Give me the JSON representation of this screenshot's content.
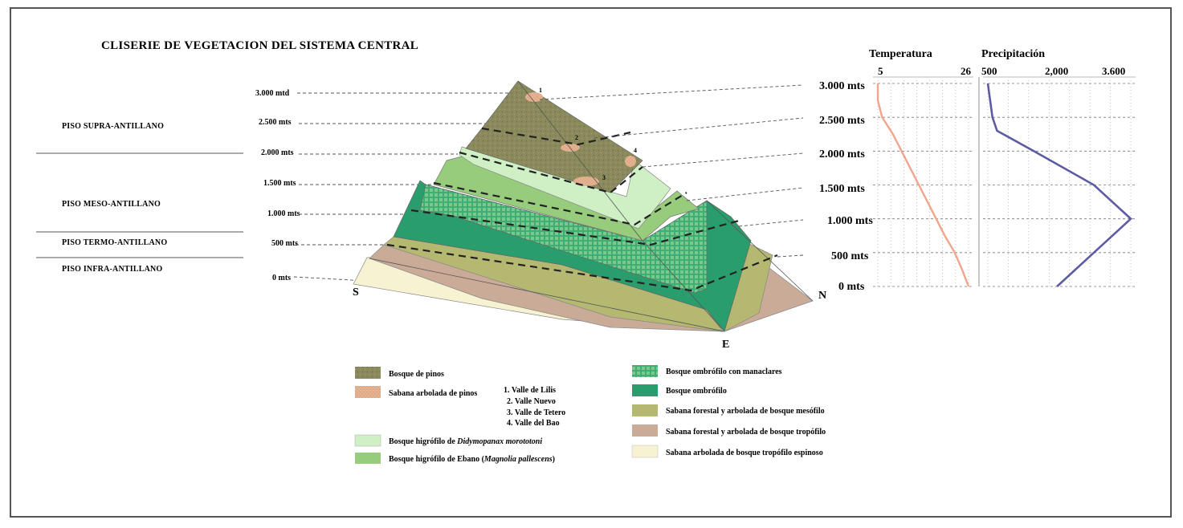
{
  "title": "CLISERIE DE VEGETACION DEL SISTEMA CENTRAL",
  "zones": [
    {
      "label": "PISO SUPRA-ANTILLANO"
    },
    {
      "label": "PISO MESO-ANTILLANO"
    },
    {
      "label": "PISO TERMO-ANTILLANO"
    },
    {
      "label": "PISO INFRA-ANTILLANO"
    }
  ],
  "altitude_labels_left": [
    "3.000 mtd",
    "2.500 mts",
    "2.000 mts",
    "1.500 mts",
    "1.000 mts",
    "500 mts",
    "0 mts"
  ],
  "altitude_labels_right": [
    "3.000 mts",
    "2.500 mts",
    "2.000 mts",
    "1.500 mts",
    "1.000 mts",
    "500 mts",
    "0 mts"
  ],
  "compass": {
    "south": "S",
    "north": "N",
    "east": "E"
  },
  "valley_numbers": [
    "1",
    "2",
    "3",
    "4"
  ],
  "colors": {
    "pine": "#8b8a5d",
    "pine_savanna": "#e6b494",
    "hygro_didymopanax": "#cff0c5",
    "hygro_ebano": "#96cc7c",
    "ombrophile_manaclar": "#3daf74",
    "ombrophile": "#2a9d6c",
    "forest_mesophile": "#b5b870",
    "forest_tropophile": "#c9ab98",
    "spiny_savanna": "#f6f2d2",
    "temperature_line": "#f0a58c",
    "precip_line": "#5c5ba3"
  },
  "legend_left": [
    {
      "text": "Bosque de pinos",
      "icon": "pine-forest-swatch"
    },
    {
      "text": "Sabana arbolada de pinos",
      "icon": "pine-savanna-swatch"
    },
    {
      "text": "Bosque higrófilo de Didymopanax morototoni",
      "icon": "hygro-didymopanax-swatch"
    },
    {
      "text": "Bosque higrófilo de Ebano (Magnolia pallescens)",
      "icon": "hygro-ebano-swatch"
    }
  ],
  "legend_left_rich": {
    "didymo_prefix": "Bosque higrófilo de ",
    "didymo_italic": "Didymopanax morototoni",
    "ebano_prefix": "Bosque higrófilo de Ebano (",
    "ebano_italic": "Magnolia pallescens",
    "ebano_suffix": ")"
  },
  "valleys": [
    "1. Valle de Lilis",
    "2. Valle Nuevo",
    "3. Valle de Tetero",
    "4. Valle del Bao"
  ],
  "legend_right": [
    {
      "text": "Bosque ombrófilo con manaclares",
      "icon": "ombrophile-manaclar-swatch"
    },
    {
      "text": "Bosque ombrófilo",
      "icon": "ombrophile-swatch"
    },
    {
      "text": "Sabana forestal y arbolada de bosque mesófilo",
      "icon": "mesophile-savanna-swatch"
    },
    {
      "text": "Sabana forestal y arbolada de bosque tropófilo",
      "icon": "tropophile-savanna-swatch"
    },
    {
      "text": "Sabana arbolada de bosque tropófilo espinoso",
      "icon": "spiny-savanna-swatch"
    }
  ],
  "chart_data": [
    {
      "type": "line",
      "title": "Temperatura",
      "x_ticks": [
        "5",
        "26"
      ],
      "xlim": [
        5,
        26
      ],
      "y_ticks": [
        0,
        500,
        1000,
        1500,
        2000,
        2500,
        3000
      ],
      "ylim": [
        0,
        3000
      ],
      "grid": true,
      "series": [
        {
          "x": [
            26,
            24.5,
            22.8,
            20.5,
            18.5,
            16.5,
            14.5,
            12.5,
            10.5,
            8.5,
            6,
            5,
            5
          ],
          "y": [
            0,
            250,
            500,
            750,
            1000,
            1250,
            1500,
            1750,
            2000,
            2250,
            2500,
            2750,
            3000
          ]
        }
      ]
    },
    {
      "type": "line",
      "title": "Precipitación",
      "x_ticks": [
        "500",
        "2,000",
        "3.600"
      ],
      "xlim": [
        500,
        3600
      ],
      "y_ticks": [
        0,
        500,
        1000,
        1500,
        2000,
        2500,
        3000
      ],
      "ylim": [
        0,
        3000
      ],
      "grid": true,
      "series": [
        {
          "x": [
            2000,
            2800,
            3600,
            2800,
            1500,
            700,
            600,
            500
          ],
          "y": [
            0,
            500,
            1000,
            1500,
            2000,
            2300,
            2500,
            3000
          ]
        }
      ]
    }
  ]
}
